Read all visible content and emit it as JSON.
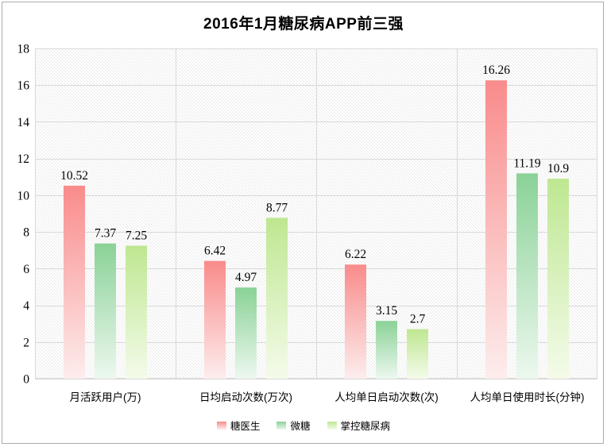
{
  "chart_data": {
    "type": "bar",
    "title": "2016年1月糖尿病APP前三强",
    "categories": [
      "月活跃用户(万)",
      "日均启动次数(万次)",
      "人均单日启动次数(次)",
      "人均单日使用时长(分钟)"
    ],
    "series": [
      {
        "name": "糖医生",
        "color": "#f98b8b",
        "color_fade": "#fdeded",
        "values": [
          10.52,
          6.42,
          6.22,
          16.26
        ]
      },
      {
        "name": "微糖",
        "color": "#8ad297",
        "color_fade": "#edf8ef",
        "values": [
          7.37,
          4.97,
          3.15,
          11.19
        ]
      },
      {
        "name": "掌控糖尿病",
        "color": "#bee791",
        "color_fade": "#f4fbea",
        "values": [
          7.25,
          8.77,
          2.7,
          10.9
        ]
      }
    ],
    "ylim": [
      0,
      18
    ],
    "yticks": [
      0,
      2,
      4,
      6,
      8,
      10,
      12,
      14,
      16,
      18
    ],
    "xlabel": "",
    "ylabel": "",
    "grid": "horizontal gridlines + vertical category dividers",
    "legend_position": "bottom",
    "plot_background": "diagonal-hatch",
    "colors": {
      "gridline": "#d9d9d9",
      "hatch": "#e9e9e9",
      "text": "#000000",
      "frame_border": "#acacac"
    }
  }
}
